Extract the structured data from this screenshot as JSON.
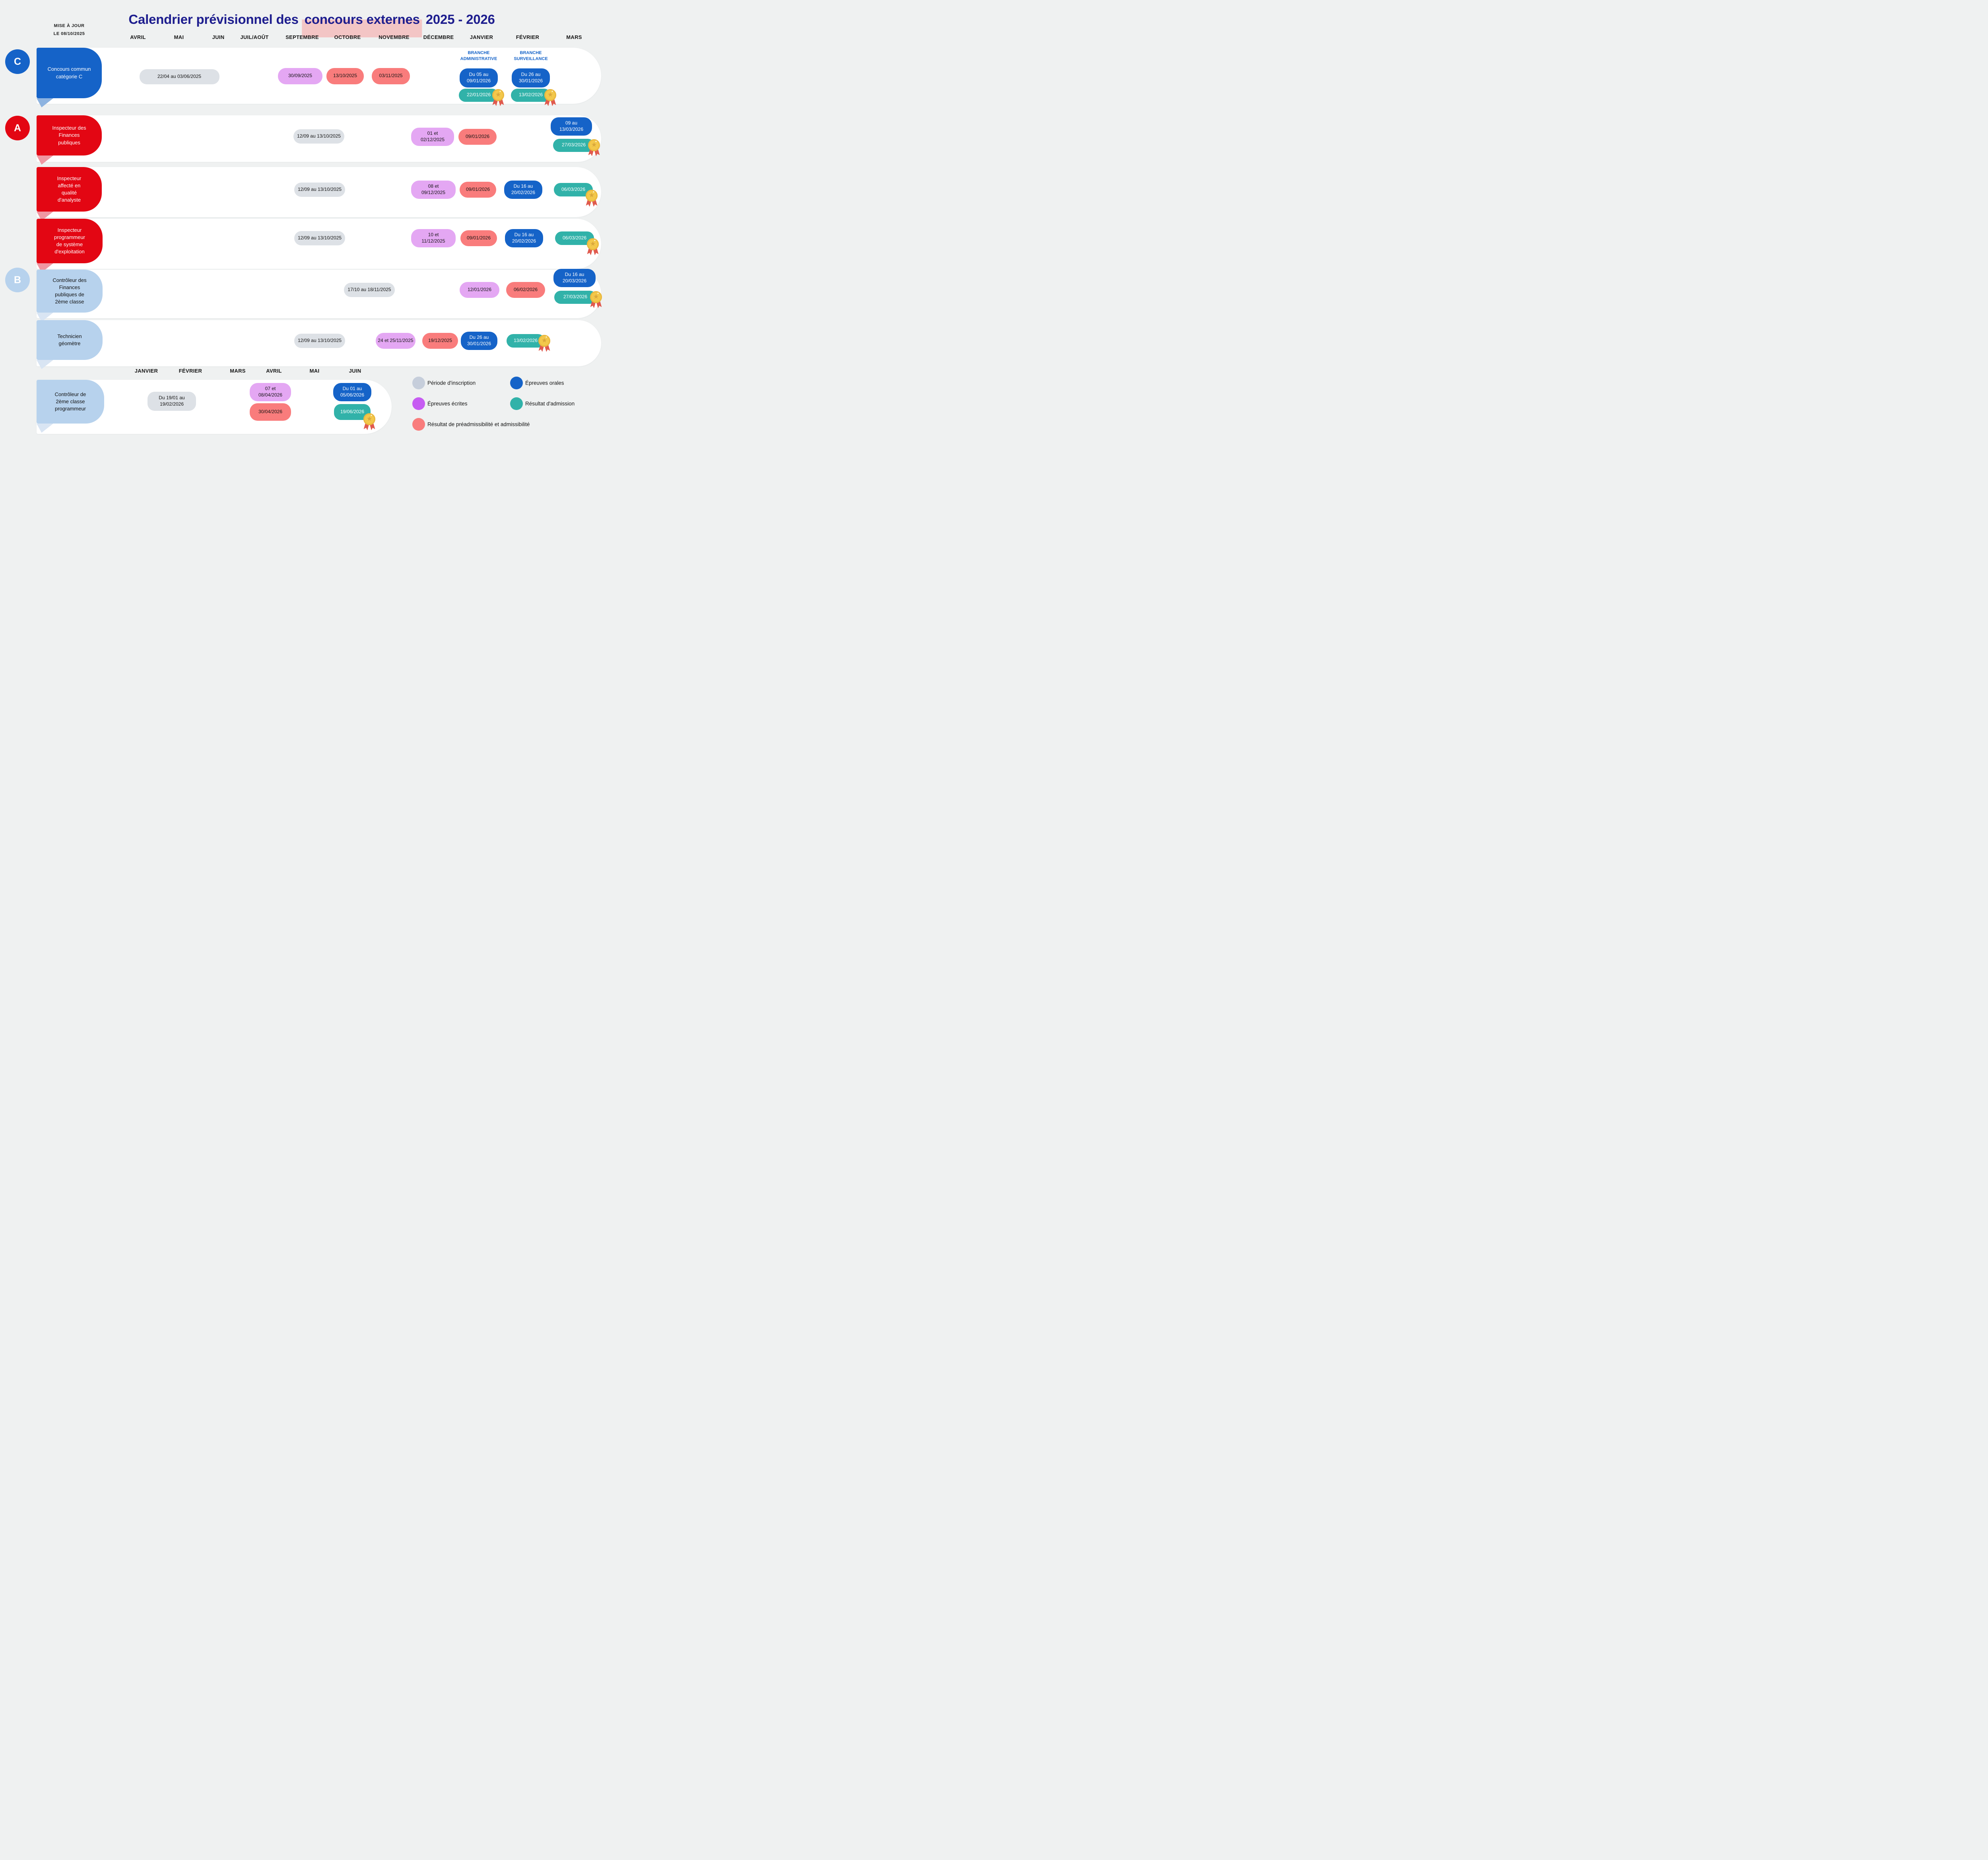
{
  "update": {
    "line1": "MISE À JOUR",
    "line2": "LE 08/10/2025"
  },
  "title": {
    "prefix": "Calendrier prévisionnel des ",
    "highlight": "concours externes",
    "suffix": " 2025 - 2026"
  },
  "axis": {
    "months_top": [
      "AVRIL",
      "MAI",
      "JUIN",
      "JUIL/AOÛT",
      "SEPTEMBRE",
      "OCTOBRE",
      "NOVEMBRE",
      "DÉCEMBRE",
      "JANVIER",
      "FÉVRIER",
      "MARS"
    ],
    "months_bottom": [
      "JANVIER",
      "FÉVRIER",
      "MARS",
      "AVRIL",
      "MAI",
      "JUIN"
    ]
  },
  "colors": {
    "page_bg": "#eff1f1",
    "panel_white": "#ffffff",
    "title_navy": "#1d1d8e",
    "highlight_pink": "#f4bdbd",
    "blue": "#1563c8",
    "red": "#e30613",
    "light_blue": "#b7d2ed",
    "pill_inscription": "#dde1e6",
    "pill_ecrites": "#e4a7f3",
    "pill_preadmissibilite": "#f97c7c",
    "pill_orales": "#1563c8",
    "pill_admission": "#31b2a9",
    "legend_inscription": "#c6cedb",
    "legend_ecrites": "#c65cf2",
    "medal_gold": "#f3c84b",
    "medal_ribbon": "#e05a4e"
  },
  "rows": [
    {
      "badge": "C",
      "tab": "Concours commun\ncatégorie C",
      "branch_headers": [
        "BRANCHE\nADMINISTRATIVE",
        "BRANCHE\nSURVEILLANCE"
      ],
      "pills": [
        {
          "type": "inscription",
          "text": "22/04 au 03/06/2025"
        },
        {
          "type": "ecrites",
          "text": "30/09/2025"
        },
        {
          "type": "preadmissibilite",
          "text": "13/10/2025"
        },
        {
          "type": "preadmissibilite",
          "text": "03/11/2025"
        },
        {
          "type": "orales",
          "text": "Du 05 au\n09/01/2026"
        },
        {
          "type": "orales",
          "text": "Du 26 au\n30/01/2026"
        },
        {
          "type": "admission",
          "text": "22/01/2026",
          "medal": true
        },
        {
          "type": "admission",
          "text": "13/02/2026",
          "medal": true
        }
      ]
    },
    {
      "badge": "A",
      "tab": "Inspecteur des\nFinances\npubliques",
      "pills": [
        {
          "type": "inscription",
          "text": "12/09 au 13/10/2025"
        },
        {
          "type": "ecrites",
          "text": "01 et\n02/12/2025"
        },
        {
          "type": "preadmissibilite",
          "text": "09/01/2026"
        },
        {
          "type": "orales",
          "text": "09 au\n13/03/2026"
        },
        {
          "type": "admission",
          "text": "27/03/2026",
          "medal": true
        }
      ]
    },
    {
      "tab": "Inspecteur\naffecté en\nqualité\nd'analyste",
      "pills": [
        {
          "type": "inscription",
          "text": "12/09 au 13/10/2025"
        },
        {
          "type": "ecrites",
          "text": "08 et\n09/12/2025"
        },
        {
          "type": "preadmissibilite",
          "text": "09/01/2026"
        },
        {
          "type": "orales",
          "text": "Du 16 au\n20/02/2026"
        },
        {
          "type": "admission",
          "text": "06/03/2026",
          "medal": true
        }
      ]
    },
    {
      "tab": "Inspecteur\nprogrammeur\nde système\nd'exploitation",
      "pills": [
        {
          "type": "inscription",
          "text": "12/09 au 13/10/2025"
        },
        {
          "type": "ecrites",
          "text": "10 et\n11/12/2025"
        },
        {
          "type": "preadmissibilite",
          "text": "09/01/2026"
        },
        {
          "type": "orales",
          "text": "Du 16 au\n20/02/2026"
        },
        {
          "type": "admission",
          "text": "06/03/2026",
          "medal": true
        }
      ]
    },
    {
      "badge": "B",
      "tab": "Contrôleur des\nFinances\npubliques de\n2ème classe",
      "pills": [
        {
          "type": "inscription",
          "text": "17/10 au 18/11/2025"
        },
        {
          "type": "ecrites",
          "text": "12/01/2026"
        },
        {
          "type": "preadmissibilite",
          "text": "06/02/2026"
        },
        {
          "type": "orales",
          "text": "Du 16 au\n20/03/2026"
        },
        {
          "type": "admission",
          "text": "27/03/2026",
          "medal": true
        }
      ]
    },
    {
      "tab": "Technicien\ngéomètre",
      "pills": [
        {
          "type": "inscription",
          "text": "12/09 au 13/10/2025"
        },
        {
          "type": "ecrites",
          "text": "24 et 25/11/2025"
        },
        {
          "type": "preadmissibilite",
          "text": "19/12/2025"
        },
        {
          "type": "orales",
          "text": "Du 26 au\n30/01/2026"
        },
        {
          "type": "admission",
          "text": "13/02/2026",
          "medal": true
        }
      ]
    },
    {
      "tab": "Contrôleur de\n2ème classe\nprogrammeur",
      "pills": [
        {
          "type": "inscription",
          "text": "Du 19/01 au\n19/02/2026"
        },
        {
          "type": "ecrites",
          "text": "07 et\n08/04/2026"
        },
        {
          "type": "preadmissibilite",
          "text": "30/04/2026"
        },
        {
          "type": "orales",
          "text": "Du 01 au\n05/06/2026"
        },
        {
          "type": "admission",
          "text": "19/06/2026",
          "medal": true
        }
      ]
    }
  ],
  "legend": [
    {
      "type": "inscription",
      "label": "Période d'inscription",
      "swatch": "#c6cedb"
    },
    {
      "type": "ecrites",
      "label": "Épreuves écrites",
      "swatch": "#c65cf2"
    },
    {
      "type": "preadmissibilite",
      "label": "Résultat de préadmissibilité et admissibilité",
      "swatch": "#f97c7c"
    },
    {
      "type": "orales",
      "label": "Épreuves orales",
      "swatch": "#1563c8"
    },
    {
      "type": "admission",
      "label": "Résultat d'admission",
      "swatch": "#31b2a9"
    }
  ]
}
